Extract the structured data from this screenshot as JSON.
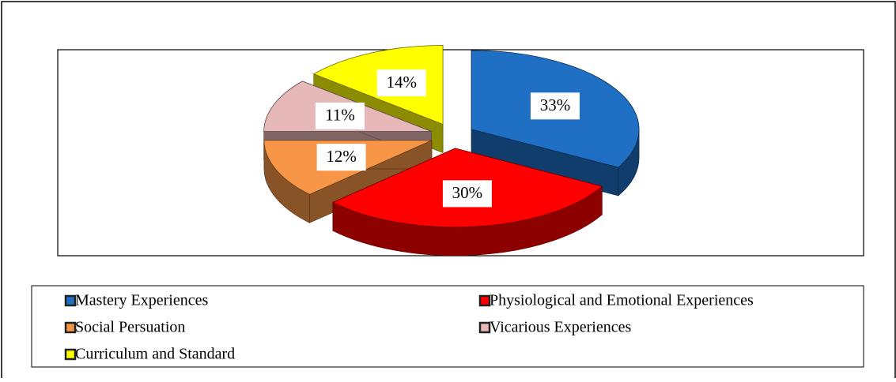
{
  "chart_data": {
    "type": "pie",
    "categories": [
      "Mastery Experiences",
      "Physiological and Emotional Experiences",
      "Social Persuation",
      "Vicarious Experiences",
      "Curriculum and Standard"
    ],
    "values": [
      33,
      30,
      12,
      11,
      14
    ],
    "value_labels": [
      "33%",
      "30%",
      "12%",
      "11%",
      "14%"
    ],
    "colors": [
      "#1f6fc4",
      "#ff0000",
      "#f79646",
      "#e6b9b8",
      "#ffff00"
    ],
    "legend": "bottom"
  }
}
